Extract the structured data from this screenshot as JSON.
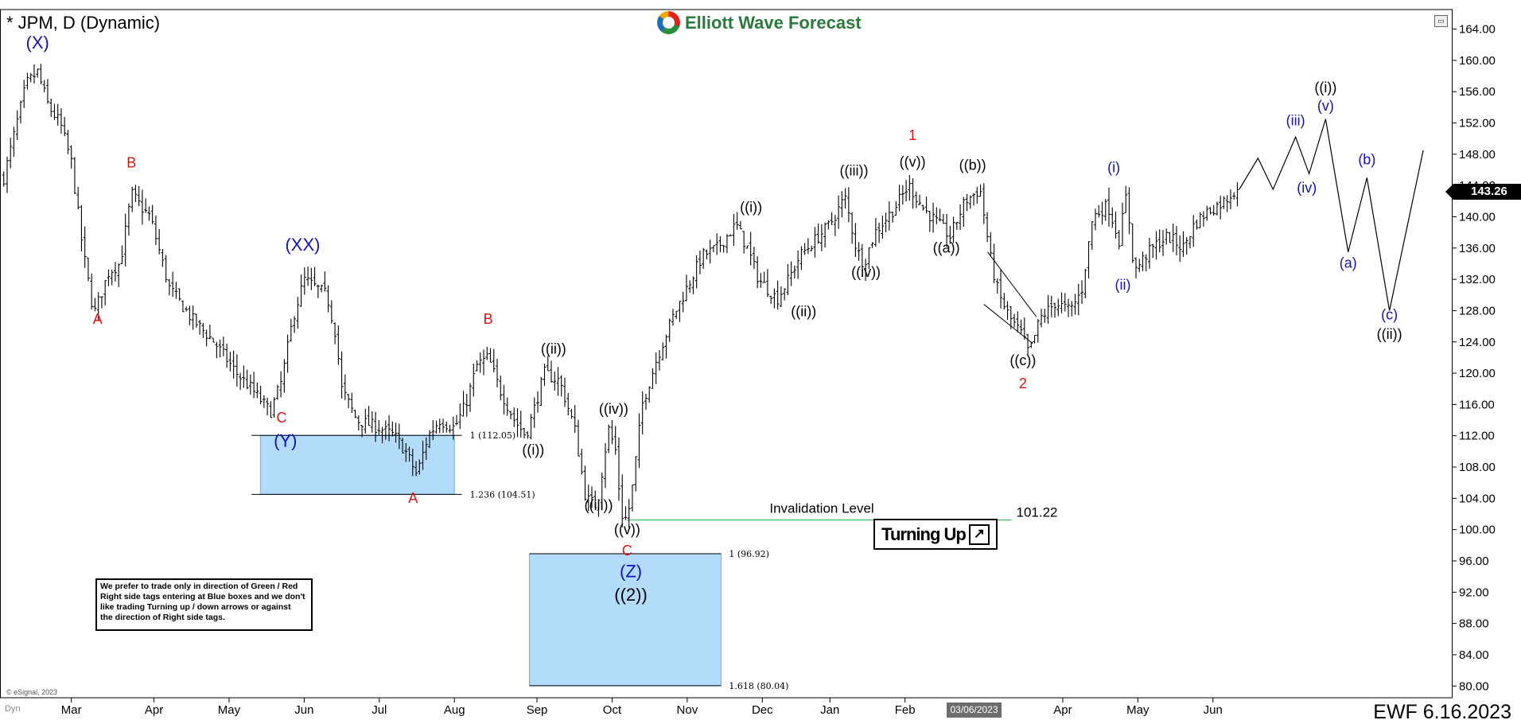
{
  "header": {
    "symbol_title": "* JPM, D (Dynamic)",
    "brand_name": "Elliott Wave Forecast",
    "footer_date": "EWF 6.16.2023",
    "copyright": "© eSignal, 2023",
    "date_marker": "03/06/2023",
    "dyn_label": "Dyn"
  },
  "note_box": {
    "lines": [
      "We prefer to trade only in direction of Green / Red",
      "Right side tags entering at Blue boxes and we don't",
      "like trading Turning up / down arrows or against",
      "the direction of Right side tags."
    ]
  },
  "badge": {
    "label": "Turning Up",
    "arrow_icon": "↗"
  },
  "chart_data": {
    "type": "ohlc",
    "instrument": "JPM",
    "timeframe": "D",
    "last_price": "143.26",
    "y_ticks": [
      "164.00",
      "160.00",
      "156.00",
      "152.00",
      "148.00",
      "144.00",
      "140.00",
      "136.00",
      "132.00",
      "128.00",
      "124.00",
      "120.00",
      "116.00",
      "112.00",
      "108.00",
      "104.00",
      "100.00",
      "96.00",
      "92.00",
      "88.00",
      "84.00",
      "80.00"
    ],
    "ylim": [
      78.5,
      166.5
    ],
    "x_months": [
      {
        "label": "Mar",
        "t": 0.9
      },
      {
        "label": "Apr",
        "t": 2.0
      },
      {
        "label": "May",
        "t": 3.0
      },
      {
        "label": "Jun",
        "t": 4.0
      },
      {
        "label": "Jul",
        "t": 5.0
      },
      {
        "label": "Aug",
        "t": 6.0
      },
      {
        "label": "Sep",
        "t": 7.1
      },
      {
        "label": "Oct",
        "t": 8.1
      },
      {
        "label": "Nov",
        "t": 9.1
      },
      {
        "label": "Dec",
        "t": 10.1
      },
      {
        "label": "Jan",
        "t": 11.0
      },
      {
        "label": "Feb",
        "t": 12.0
      },
      {
        "label": "Apr",
        "t": 14.1
      },
      {
        "label": "May",
        "t": 15.1
      },
      {
        "label": "Jun",
        "t": 16.1
      }
    ],
    "price_path": [
      [
        0.0,
        145
      ],
      [
        0.3,
        157
      ],
      [
        0.45,
        158.5
      ],
      [
        0.6,
        154
      ],
      [
        0.75,
        152
      ],
      [
        0.9,
        147
      ],
      [
        1.05,
        136
      ],
      [
        1.2,
        127.5
      ],
      [
        1.4,
        133
      ],
      [
        1.55,
        134
      ],
      [
        1.7,
        143
      ],
      [
        1.85,
        141
      ],
      [
        1.95,
        140
      ],
      [
        2.2,
        131
      ],
      [
        2.5,
        127
      ],
      [
        2.8,
        124
      ],
      [
        3.1,
        120
      ],
      [
        3.3,
        118
      ],
      [
        3.55,
        115
      ],
      [
        3.7,
        119
      ],
      [
        3.85,
        127
      ],
      [
        4.0,
        132
      ],
      [
        4.15,
        131
      ],
      [
        4.3,
        130
      ],
      [
        4.42,
        125
      ],
      [
        4.5,
        118
      ],
      [
        4.7,
        114
      ],
      [
        5.0,
        113
      ],
      [
        5.2,
        112
      ],
      [
        5.35,
        110
      ],
      [
        5.5,
        107
      ],
      [
        5.65,
        112
      ],
      [
        5.8,
        114
      ],
      [
        6.0,
        113
      ],
      [
        6.15,
        116
      ],
      [
        6.3,
        121
      ],
      [
        6.45,
        122
      ],
      [
        6.6,
        118
      ],
      [
        6.8,
        114
      ],
      [
        6.95,
        112
      ],
      [
        7.05,
        115
      ],
      [
        7.2,
        120
      ],
      [
        7.4,
        119
      ],
      [
        7.6,
        113
      ],
      [
        7.75,
        104
      ],
      [
        7.9,
        103
      ],
      [
        8.05,
        113
      ],
      [
        8.15,
        110
      ],
      [
        8.22,
        102
      ],
      [
        8.3,
        101.22
      ],
      [
        8.38,
        106
      ],
      [
        8.5,
        116
      ],
      [
        8.7,
        122
      ],
      [
        8.9,
        127
      ],
      [
        9.1,
        131
      ],
      [
        9.3,
        135
      ],
      [
        9.5,
        136
      ],
      [
        9.75,
        139
      ],
      [
        9.9,
        136
      ],
      [
        10.05,
        132
      ],
      [
        10.3,
        129.5
      ],
      [
        10.45,
        132
      ],
      [
        10.6,
        135
      ],
      [
        10.8,
        137
      ],
      [
        11.0,
        139
      ],
      [
        11.2,
        142.5
      ],
      [
        11.35,
        136
      ],
      [
        11.45,
        134
      ],
      [
        11.6,
        138
      ],
      [
        11.85,
        141
      ],
      [
        12.05,
        144
      ],
      [
        12.25,
        141
      ],
      [
        12.45,
        139
      ],
      [
        12.6,
        137.5
      ],
      [
        12.8,
        142
      ],
      [
        13.0,
        143.5
      ],
      [
        13.15,
        134
      ],
      [
        13.25,
        130
      ],
      [
        13.4,
        127
      ],
      [
        13.55,
        125
      ],
      [
        13.65,
        122.5
      ],
      [
        13.8,
        127
      ],
      [
        14.0,
        129
      ],
      [
        14.2,
        128
      ],
      [
        14.35,
        130.5
      ],
      [
        14.5,
        140
      ],
      [
        14.7,
        141.5
      ],
      [
        14.85,
        137
      ],
      [
        14.95,
        143
      ],
      [
        15.05,
        133
      ],
      [
        15.2,
        135
      ],
      [
        15.35,
        136.5
      ],
      [
        15.5,
        137.5
      ],
      [
        15.7,
        136
      ],
      [
        15.85,
        139
      ],
      [
        16.0,
        140.5
      ],
      [
        16.25,
        142
      ],
      [
        16.45,
        144
      ]
    ],
    "projection": [
      [
        16.45,
        143.5
      ],
      [
        16.7,
        147.5
      ],
      [
        16.9,
        143.5
      ],
      [
        17.2,
        150.2
      ],
      [
        17.38,
        145.5
      ],
      [
        17.6,
        152.5
      ],
      [
        17.9,
        135.5
      ],
      [
        18.15,
        145
      ],
      [
        18.45,
        128
      ],
      [
        18.9,
        148.5
      ]
    ],
    "wave_labels": [
      {
        "text": "(X)",
        "t": 0.45,
        "p": 161.5,
        "color": "#1010c8"
      },
      {
        "text": "A",
        "t": 1.25,
        "p": 126.3,
        "color": "#e01010"
      },
      {
        "text": "B",
        "t": 1.7,
        "p": 146.3,
        "color": "#e01010"
      },
      {
        "text": "(XX)",
        "t": 3.98,
        "p": 135.7,
        "color": "#1010c8"
      },
      {
        "text": "C",
        "t": 3.7,
        "p": 113.7,
        "color": "#e01010"
      },
      {
        "text": "(Y)",
        "t": 3.75,
        "p": 110.6,
        "color": "#1010c8"
      },
      {
        "text": "A",
        "t": 5.45,
        "p": 103.4,
        "color": "#e01010"
      },
      {
        "text": "B",
        "t": 6.45,
        "p": 126.3,
        "color": "#e01010"
      },
      {
        "text": "((ii))",
        "t": 7.32,
        "p": 122.5,
        "color": "#000000"
      },
      {
        "text": "((i))",
        "t": 7.05,
        "p": 109.6,
        "color": "#000000"
      },
      {
        "text": "((iv))",
        "t": 8.12,
        "p": 114.8,
        "color": "#000000"
      },
      {
        "text": "((iii))",
        "t": 7.92,
        "p": 102.5,
        "color": "#000000"
      },
      {
        "text": "((v))",
        "t": 8.3,
        "p": 99.4,
        "color": "#000000"
      },
      {
        "text": "C",
        "t": 8.3,
        "p": 96.7,
        "color": "#e01010"
      },
      {
        "text": "(Z)",
        "t": 8.35,
        "p": 93.9,
        "color": "#1010c8"
      },
      {
        "text": "((2))",
        "t": 8.35,
        "p": 90.9,
        "color": "#000000"
      },
      {
        "text": "((i))",
        "t": 9.95,
        "p": 140.6,
        "color": "#000000"
      },
      {
        "text": "((ii))",
        "t": 10.65,
        "p": 127.3,
        "color": "#000000"
      },
      {
        "text": "((iii))",
        "t": 11.32,
        "p": 145.3,
        "color": "#000000"
      },
      {
        "text": "((iv))",
        "t": 11.48,
        "p": 132.3,
        "color": "#000000"
      },
      {
        "text": "1",
        "t": 12.1,
        "p": 149.8,
        "color": "#e01010"
      },
      {
        "text": "((v))",
        "t": 12.1,
        "p": 146.4,
        "color": "#000000"
      },
      {
        "text": "((b))",
        "t": 12.9,
        "p": 146.0,
        "color": "#000000"
      },
      {
        "text": "((a))",
        "t": 12.55,
        "p": 135.4,
        "color": "#000000"
      },
      {
        "text": "((c))",
        "t": 13.57,
        "p": 121.0,
        "color": "#000000"
      },
      {
        "text": "2",
        "t": 13.57,
        "p": 118.1,
        "color": "#e01010"
      },
      {
        "text": "(i)",
        "t": 14.78,
        "p": 145.7,
        "color": "#1010c8"
      },
      {
        "text": "(ii)",
        "t": 14.9,
        "p": 130.7,
        "color": "#1010c8"
      },
      {
        "text": "(iii)",
        "t": 17.2,
        "p": 151.7,
        "color": "#1010c8"
      },
      {
        "text": "(iv)",
        "t": 17.35,
        "p": 143.1,
        "color": "#1010c8"
      },
      {
        "text": "((i))",
        "t": 17.6,
        "p": 155.9,
        "color": "#000000"
      },
      {
        "text": "(v)",
        "t": 17.6,
        "p": 153.6,
        "color": "#1010c8"
      },
      {
        "text": "(b)",
        "t": 18.15,
        "p": 146.7,
        "color": "#1010c8"
      },
      {
        "text": "(a)",
        "t": 17.9,
        "p": 133.5,
        "color": "#1010c8"
      },
      {
        "text": "(c)",
        "t": 18.45,
        "p": 126.9,
        "color": "#1010c8"
      },
      {
        "text": "((ii))",
        "t": 18.45,
        "p": 124.4,
        "color": "#000000"
      }
    ],
    "blue_boxes": [
      {
        "t0": 3.42,
        "t1": 6.0,
        "p0": 112.05,
        "p1": 104.51
      },
      {
        "t0": 7.0,
        "t1": 9.55,
        "p0": 96.92,
        "p1": 80.04
      }
    ],
    "fib_lines": [
      {
        "label": "1 (112.05)",
        "t0": 3.3,
        "t1": 6.1,
        "p": 112.05
      },
      {
        "label": "1.236 (104.51)",
        "t0": 3.3,
        "t1": 6.1,
        "p": 104.51
      },
      {
        "label": "1 (96.92)",
        "t0": 7.0,
        "t1": 9.55,
        "p": 96.92
      },
      {
        "label": "1.618 (80.04)",
        "t0": 7.0,
        "t1": 9.55,
        "p": 80.04
      }
    ],
    "invalidation": {
      "label": "Invalidation Level",
      "value": "101.22",
      "t0": 8.3,
      "t1": 13.1,
      "p": 101.22
    },
    "diagonal_channel": [
      {
        "t0": 13.05,
        "t1": 13.7,
        "p0": 128.8,
        "p1": 123.8
      },
      {
        "t0": 13.1,
        "t1": 13.75,
        "p0": 135.5,
        "p1": 127.2
      }
    ]
  }
}
